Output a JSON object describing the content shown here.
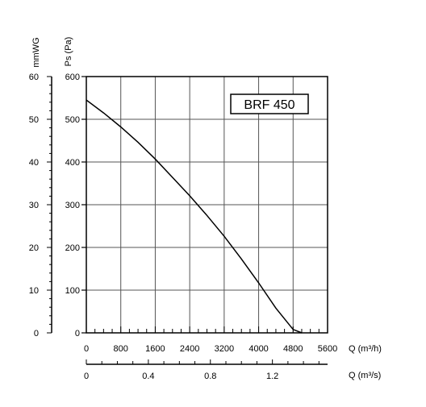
{
  "chart_data": {
    "type": "line",
    "title_box": "BRF 450",
    "axes": {
      "flow_m3h": {
        "label": "Q (m³/h)",
        "range": [
          0,
          5600
        ],
        "ticks": [
          "0",
          "800",
          "1600",
          "2400",
          "3200",
          "4000",
          "4800",
          "5600"
        ]
      },
      "flow_m3s": {
        "label": "Q (m³/s)",
        "range": [
          0,
          1.5556
        ],
        "ticks": [
          "0",
          "0.4",
          "0.8",
          "1.2"
        ],
        "tick_values": [
          0,
          0.4,
          0.8,
          1.2
        ]
      },
      "pressure_pa": {
        "label": "Ps (Pa)",
        "range": [
          0,
          600
        ],
        "ticks": [
          "0",
          "100",
          "200",
          "300",
          "400",
          "500",
          "600"
        ]
      },
      "pressure_mmwg": {
        "label": "mmWG",
        "range": [
          0,
          60
        ],
        "ticks": [
          "0",
          "10",
          "20",
          "30",
          "40",
          "50",
          "60"
        ]
      }
    },
    "grid": true,
    "series": [
      {
        "x": [
          0,
          400,
          800,
          1200,
          1600,
          2000,
          2400,
          2800,
          3200,
          3600,
          4000,
          4400,
          4800,
          5000
        ],
        "y": [
          545,
          515,
          482,
          446,
          407,
          364,
          321,
          275,
          226,
          173,
          117,
          58,
          8,
          0
        ]
      }
    ]
  }
}
